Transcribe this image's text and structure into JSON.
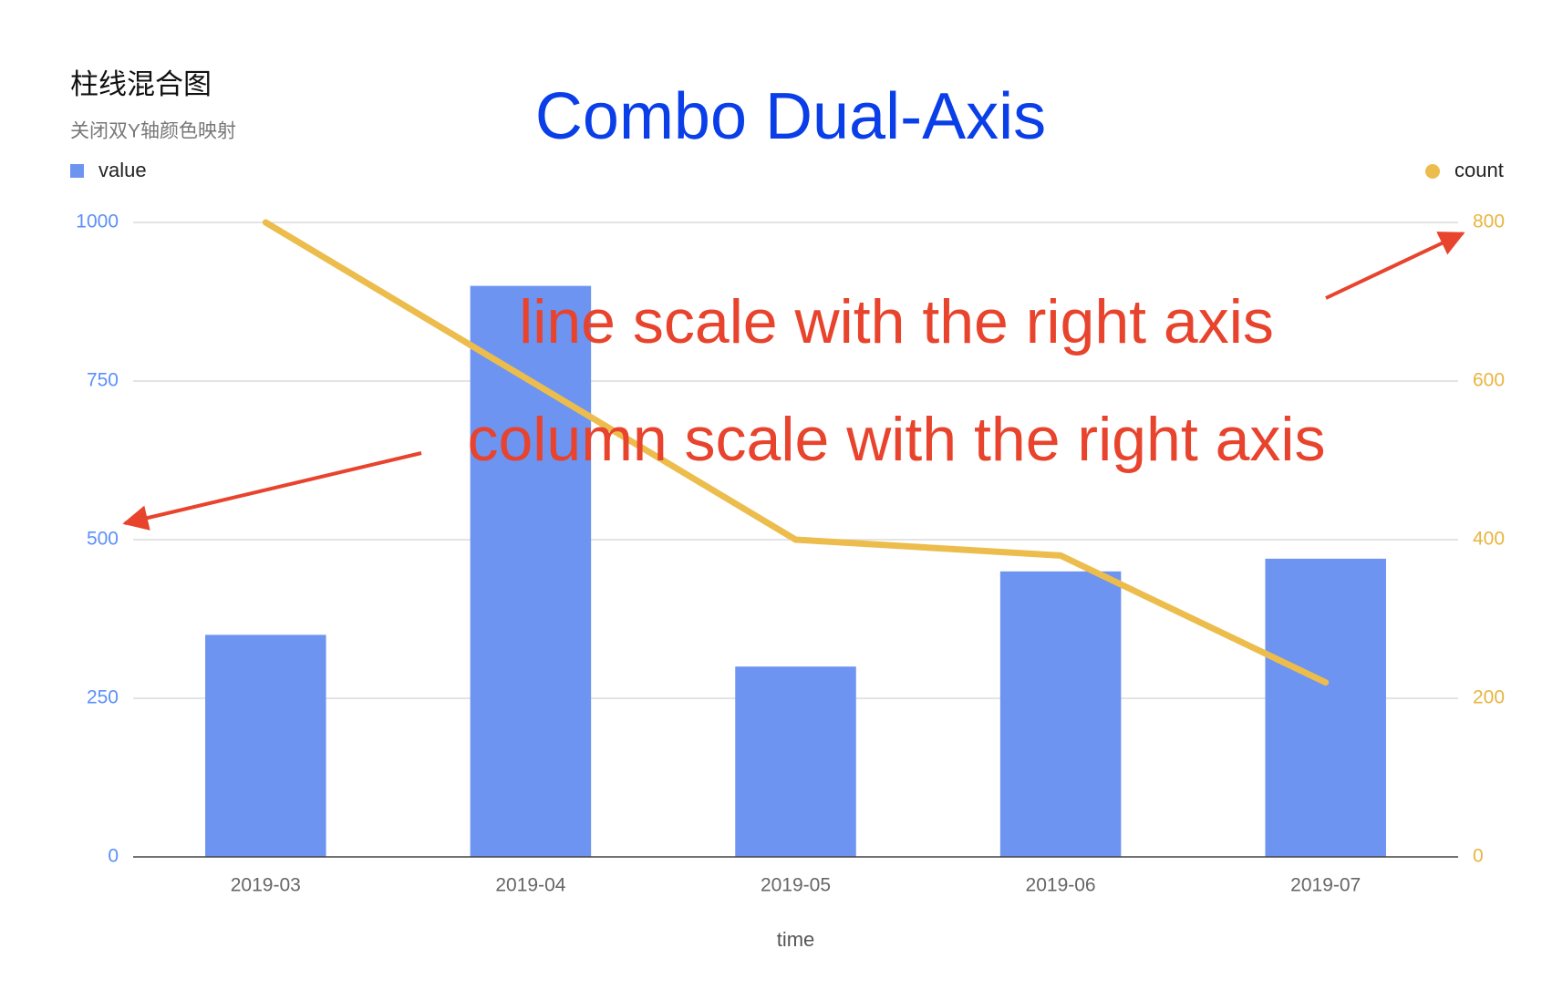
{
  "chart_data": {
    "type": "combo",
    "title": "柱线混合图",
    "subtitle": "关闭双Y轴颜色映射",
    "annotations": [
      "Combo Dual-Axis",
      "line scale with the right axis",
      "column scale with the right axis"
    ],
    "x_label": "time",
    "categories": [
      "2019-03",
      "2019-04",
      "2019-05",
      "2019-06",
      "2019-07"
    ],
    "series": [
      {
        "name": "value",
        "type": "bar",
        "color": "#6d94f0",
        "values": [
          350,
          900,
          300,
          450,
          470
        ]
      },
      {
        "name": "count",
        "type": "line",
        "axis": "y2",
        "color": "#ecbd4c",
        "values": [
          800,
          600,
          400,
          380,
          220
        ]
      }
    ],
    "ylim": [
      0,
      1000
    ],
    "yticks": [
      0,
      250,
      500,
      750,
      1000
    ],
    "y2lim": [
      0,
      800
    ],
    "y2ticks": [
      0,
      200,
      400,
      600,
      800
    ],
    "grid": true
  }
}
